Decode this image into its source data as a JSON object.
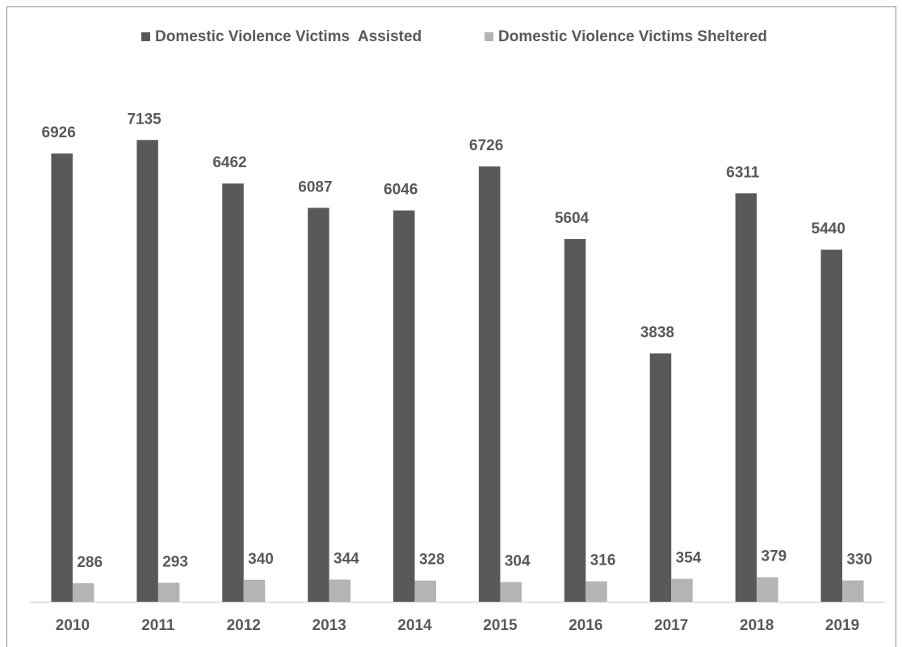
{
  "chart_data": {
    "type": "bar",
    "categories": [
      "2010",
      "2011",
      "2012",
      "2013",
      "2014",
      "2015",
      "2016",
      "2017",
      "2018",
      "2019"
    ],
    "series": [
      {
        "name": "Domestic Violence Victims  Assisted",
        "color": "#595959",
        "values": [
          6926,
          7135,
          6462,
          6087,
          6046,
          6726,
          5604,
          3838,
          6311,
          5440
        ]
      },
      {
        "name": "Domestic Violence Victims Sheltered",
        "color": "#b4b4b4",
        "values": [
          286,
          293,
          340,
          344,
          328,
          304,
          316,
          354,
          379,
          330
        ]
      }
    ],
    "ylim": [
      0,
      8000
    ],
    "legend": "top"
  }
}
